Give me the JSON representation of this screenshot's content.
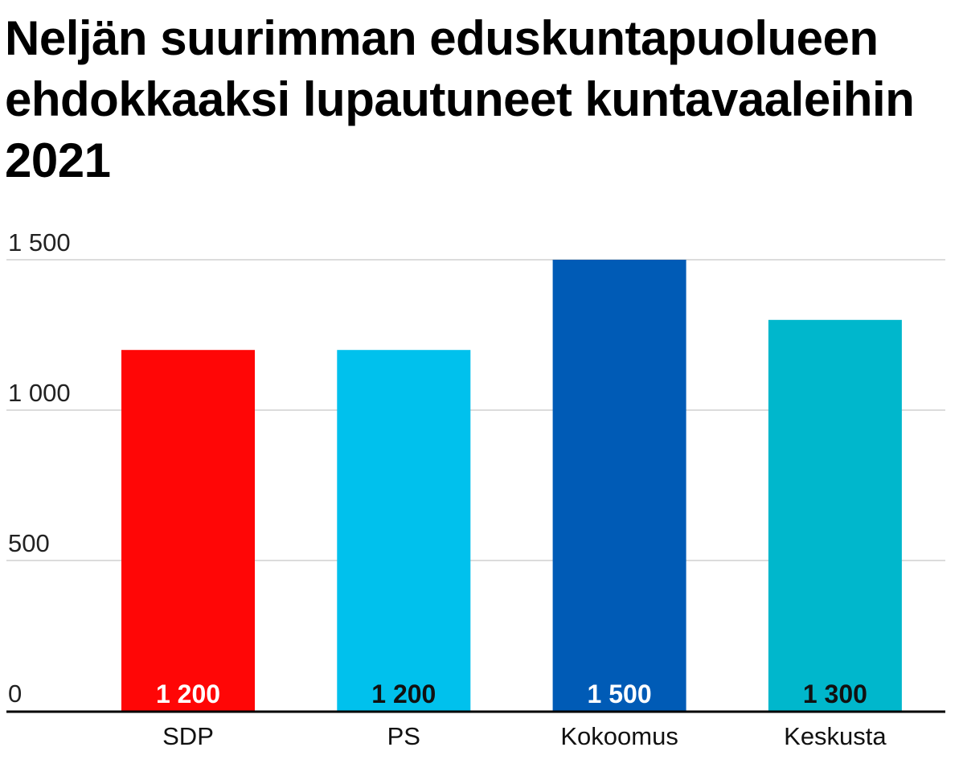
{
  "chart_data": {
    "type": "bar",
    "title": "Neljän suurimman eduskuntapuolueen ehdokkaaksi lupautuneet kuntavaaleihin 2021",
    "xlabel": "",
    "ylabel": "",
    "categories": [
      "SDP",
      "PS",
      "Kokoomus",
      "Keskusta"
    ],
    "values": [
      1200,
      1200,
      1500,
      1300
    ],
    "value_labels": [
      "1 200",
      "1 200",
      "1 500",
      "1 300"
    ],
    "colors": [
      "#ff0606",
      "#00c1ed",
      "#005bb6",
      "#00b7cc"
    ],
    "value_label_colors": [
      "#ffffff",
      "#111111",
      "#ffffff",
      "#111111"
    ],
    "ylim": [
      0,
      1500
    ],
    "yticks": [
      0,
      500,
      1000,
      1500
    ],
    "ytick_labels": [
      "0",
      "500",
      "1 000",
      "1 500"
    ],
    "grid": true,
    "legend": "none"
  }
}
